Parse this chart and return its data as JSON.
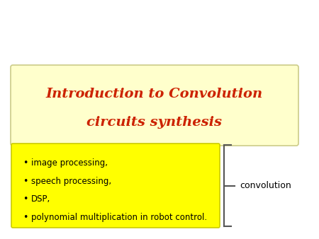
{
  "bg_color": "#ffffff",
  "title_box_color": "#ffffcc",
  "title_box_edge": "#cccc88",
  "title_text_line1": "Introduction to Convolution",
  "title_text_line2": "circuits synthesis",
  "title_text_color": "#cc2200",
  "bullet_box_color": "#ffff00",
  "bullet_box_edge": "#cccc00",
  "bullet_items": [
    "image processing,",
    "speech processing,",
    "DSP,",
    "polynomial multiplication in robot control."
  ],
  "bullet_text_color": "#000000",
  "convolution_text": "convolution",
  "convolution_text_color": "#000000",
  "brace_color": "#555555"
}
